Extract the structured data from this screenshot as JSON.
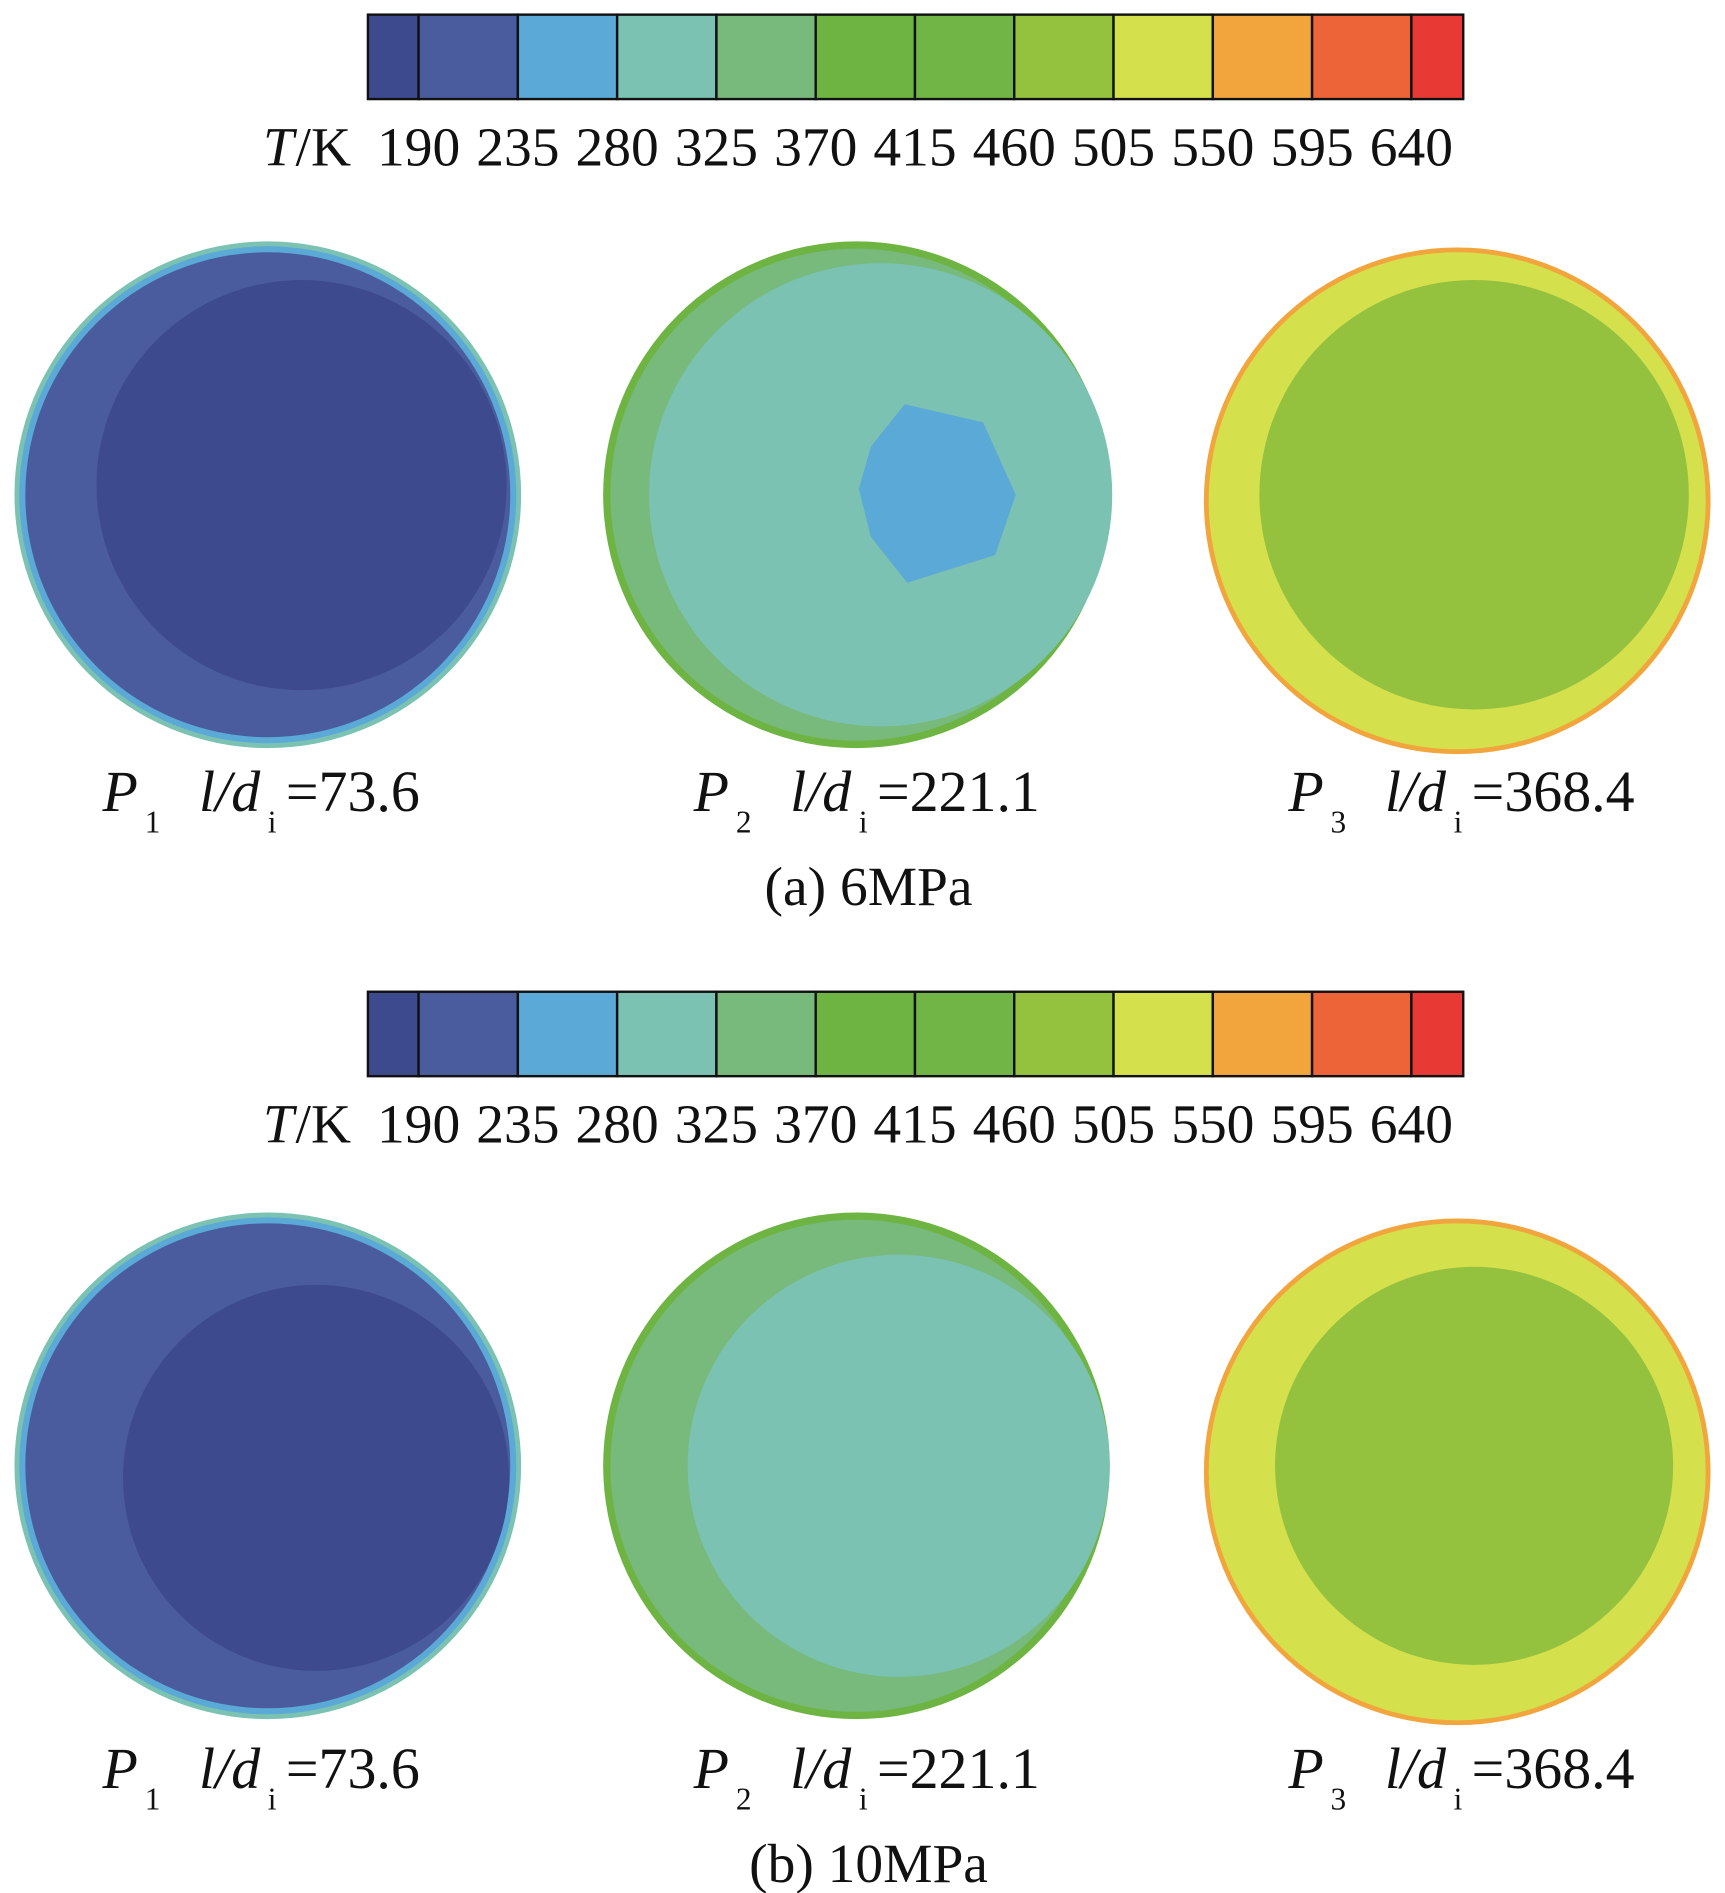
{
  "panels": [
    {
      "colorbar": {
        "unit_symbol": "T",
        "unit": "/K",
        "ticks": [
          "190",
          "235",
          "280",
          "325",
          "370",
          "415",
          "460",
          "505",
          "550",
          "595",
          "640"
        ]
      },
      "plots": [
        {
          "point": "P",
          "point_sub": "1",
          "var": "l/d",
          "var_sub": "i",
          "value": "=73.6"
        },
        {
          "point": "P",
          "point_sub": "2",
          "var": "l/d",
          "var_sub": "i",
          "value": "=221.1"
        },
        {
          "point": "P",
          "point_sub": "3",
          "var": "l/d",
          "var_sub": "i",
          "value": "=368.4"
        }
      ],
      "caption": "(a) 6MPa"
    },
    {
      "colorbar": {
        "unit_symbol": "T",
        "unit": "/K",
        "ticks": [
          "190",
          "235",
          "280",
          "325",
          "370",
          "415",
          "460",
          "505",
          "550",
          "595",
          "640"
        ]
      },
      "plots": [
        {
          "point": "P",
          "point_sub": "1",
          "var": "l/d",
          "var_sub": "i",
          "value": "=73.6"
        },
        {
          "point": "P",
          "point_sub": "2",
          "var": "l/d",
          "var_sub": "i",
          "value": "=221.1"
        },
        {
          "point": "P",
          "point_sub": "3",
          "var": "l/d",
          "var_sub": "i",
          "value": "=368.4"
        }
      ],
      "caption": "(b) 10MPa"
    }
  ]
}
